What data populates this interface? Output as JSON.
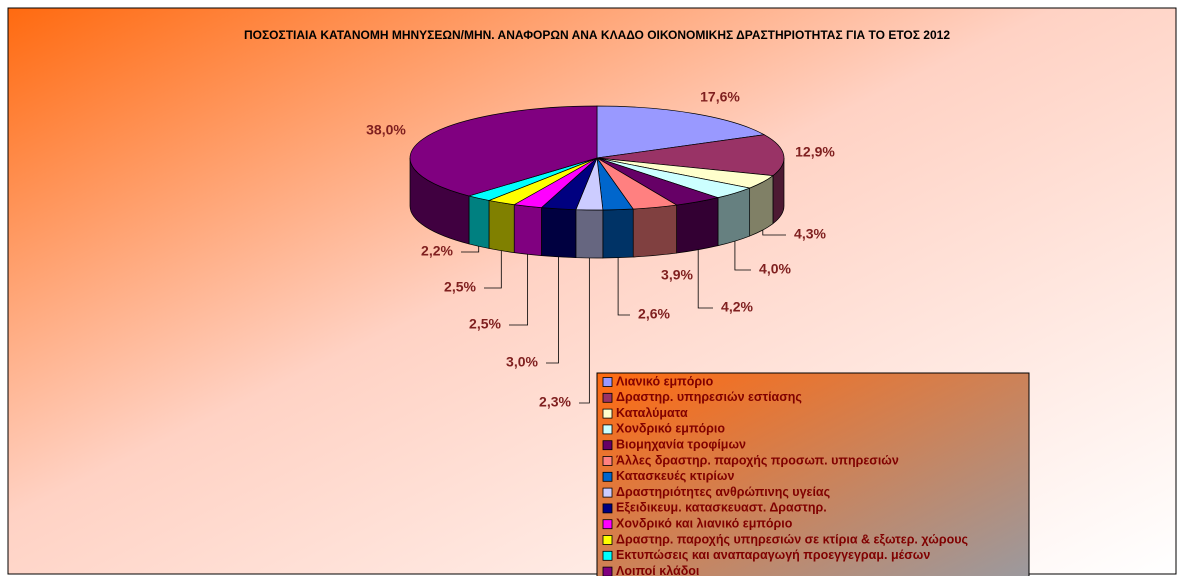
{
  "chart_data": {
    "type": "pie",
    "title": "ΠΟΣΟΣΤΙΑΙΑ ΚΑΤΑΝΟΜΗ ΜΗΝΥΣΕΩΝ/ΜΗΝ. ΑΝΑΦΟΡΩΝ ΑΝΑ ΚΛΑΔΟ ΟΙΚΟΝΟΜΙΚΗΣ ΔΡΑΣΤΗΡΙΟΤΗΤΑΣ ΓΙΑ ΤΟ ΕΤΟΣ 2012",
    "categories": [
      "Λιανικό εμπόριο",
      "Δραστηρ. υπηρεσιών εστίασης",
      "Καταλύματα",
      "Χονδρικό εμπόριο",
      "Βιομηχανία τροφίμων",
      "Άλλες δραστηρ. παροχής προσωπ. υπηρεσιών",
      "Κατασκευές κτιρίων",
      "Δραστηριότητες ανθρώπινης υγείας",
      "Εξειδικευμ. κατασκευαστ. Δραστηρ.",
      "Χονδρικό και λιανικό εμπόριο",
      "Δραστηρ. παροχής υπηρεσιών σε κτίρια & εξωτερ. χώρους",
      "Εκτυπώσεις και αναπαραγωγή προεγγεγραμ. μέσων",
      "Λοιποί κλάδοι"
    ],
    "values": [
      17.6,
      12.9,
      4.3,
      4.0,
      4.2,
      3.9,
      2.6,
      2.3,
      3.0,
      2.5,
      2.5,
      2.2,
      38.0
    ],
    "value_labels": [
      "17,6%",
      "12,9%",
      "4,3%",
      "4,0%",
      "4,2%",
      "3,9%",
      "2,6%",
      "2,3%",
      "3,0%",
      "2,5%",
      "2,5%",
      "2,2%",
      "38,0%"
    ],
    "colors": [
      "#9999ff",
      "#993366",
      "#ffffcc",
      "#ccffff",
      "#660066",
      "#ff8080",
      "#0066cc",
      "#ccccff",
      "#000080",
      "#ff00ff",
      "#ffff00",
      "#00ffff",
      "#800080"
    ]
  }
}
